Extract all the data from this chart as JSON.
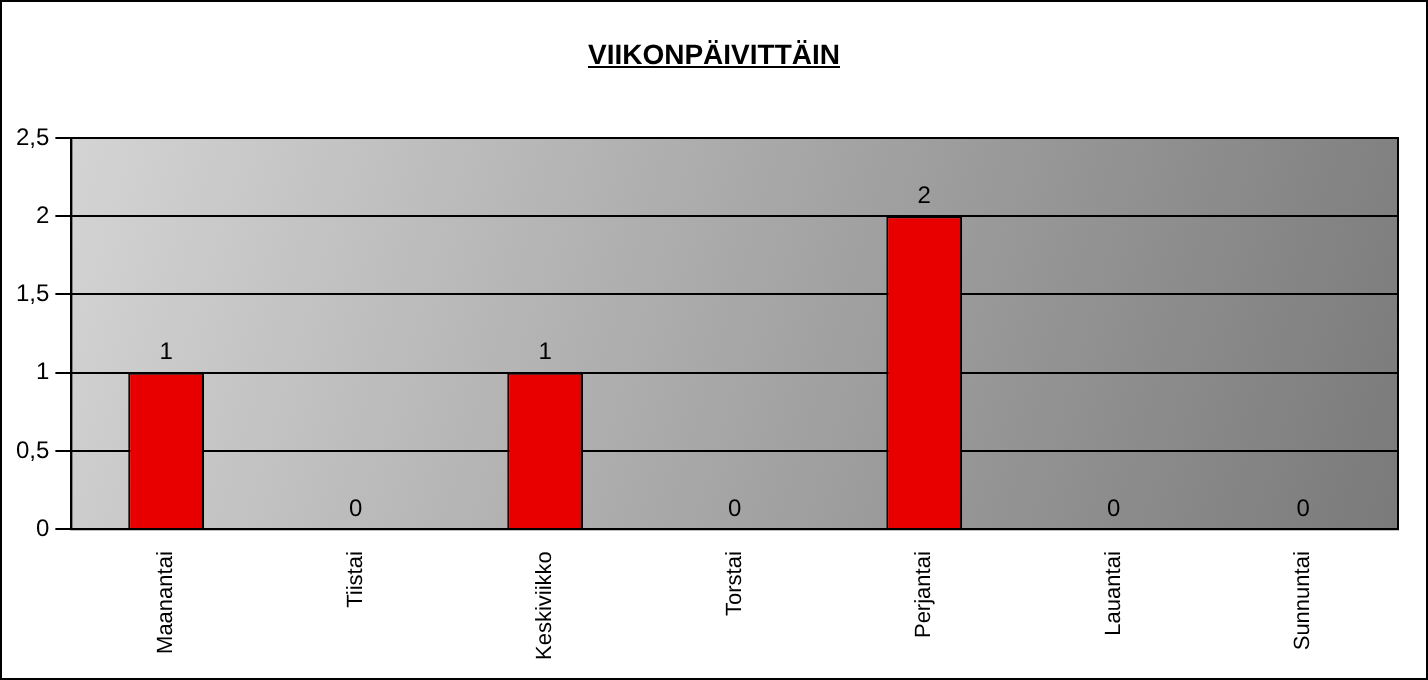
{
  "chart_data": {
    "type": "bar",
    "title": "VIIKONPÄIVITTÄIN",
    "categories": [
      "Maanantai",
      "Tiistai",
      "Keskiviikko",
      "Torstai",
      "Perjantai",
      "Lauantai",
      "Sunnuntai"
    ],
    "values": [
      1,
      0,
      1,
      0,
      2,
      0,
      0
    ],
    "color": "#e80000",
    "ylim": [
      0,
      2.5
    ],
    "yticks": [
      0,
      {
        "value": 0.5,
        "label": "0,5"
      },
      1,
      {
        "value": 1.5,
        "label": "1,5"
      },
      2,
      {
        "value": 2.5,
        "label": "2,5"
      }
    ],
    "grid": "y",
    "data_labels": true
  }
}
